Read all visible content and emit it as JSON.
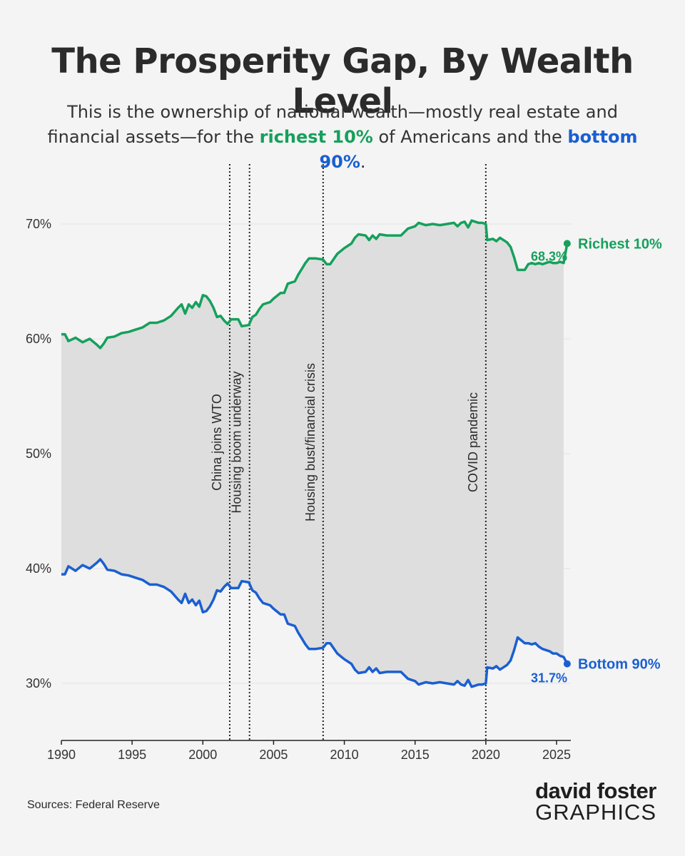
{
  "header": {
    "title": "The Prosperity Gap, By Wealth Level",
    "subtitle_part1": "This is the ownership of national wealth—mostly real estate and financial assets—for the ",
    "subtitle_green": "richest 10%",
    "subtitle_part2": " of Americans and the ",
    "subtitle_blue": "bottom 90%",
    "subtitle_part3": "."
  },
  "footer": {
    "source": "Sources: Federal Reserve",
    "brand_top": "david foster",
    "brand_bottom": "GRAPHICS"
  },
  "colors": {
    "richest": "#16a05c",
    "bottom": "#1a5fd1",
    "fill": "#dedede",
    "text": "#2a2a2a"
  },
  "chart_data": {
    "type": "line",
    "x_ticks": [
      1990,
      1995,
      2000,
      2005,
      2010,
      2015,
      2020,
      2025
    ],
    "y_ticks": [
      30,
      40,
      50,
      60,
      70
    ],
    "y_tick_labels": [
      "30%",
      "40%",
      "50%",
      "60%",
      "70%"
    ],
    "xlim": [
      1990,
      2026
    ],
    "ylim": [
      25,
      74
    ],
    "grid": "horizontal",
    "annotations": [
      {
        "x": 2001.9,
        "label": "China joins WTO"
      },
      {
        "x": 2003.3,
        "label": "Housing boom underway"
      },
      {
        "x": 2008.5,
        "label": "Housing bust/financial crisis"
      },
      {
        "x": 2020.0,
        "label": "COVID pandemic"
      }
    ],
    "series": [
      {
        "name": "Richest 10%",
        "end_label": "68.3%",
        "color": "#16a05c",
        "points": [
          [
            1990.0,
            60.4
          ],
          [
            1990.25,
            60.4
          ],
          [
            1990.5,
            59.8
          ],
          [
            1991.0,
            60.1
          ],
          [
            1991.5,
            59.7
          ],
          [
            1992.0,
            60.0
          ],
          [
            1992.5,
            59.5
          ],
          [
            1992.75,
            59.2
          ],
          [
            1993.0,
            59.6
          ],
          [
            1993.25,
            60.1
          ],
          [
            1993.75,
            60.2
          ],
          [
            1994.25,
            60.5
          ],
          [
            1994.75,
            60.6
          ],
          [
            1995.25,
            60.8
          ],
          [
            1995.75,
            61.0
          ],
          [
            1996.25,
            61.4
          ],
          [
            1996.75,
            61.4
          ],
          [
            1997.25,
            61.6
          ],
          [
            1997.75,
            62.0
          ],
          [
            1998.25,
            62.7
          ],
          [
            1998.5,
            63.0
          ],
          [
            1998.75,
            62.2
          ],
          [
            1999.0,
            63.0
          ],
          [
            1999.25,
            62.7
          ],
          [
            1999.5,
            63.2
          ],
          [
            1999.75,
            62.8
          ],
          [
            2000.0,
            63.8
          ],
          [
            2000.25,
            63.7
          ],
          [
            2000.5,
            63.3
          ],
          [
            2000.75,
            62.7
          ],
          [
            2001.0,
            61.9
          ],
          [
            2001.25,
            62.0
          ],
          [
            2001.5,
            61.6
          ],
          [
            2001.75,
            61.3
          ],
          [
            2002.0,
            61.7
          ],
          [
            2002.5,
            61.7
          ],
          [
            2002.75,
            61.1
          ],
          [
            2003.25,
            61.2
          ],
          [
            2003.5,
            61.9
          ],
          [
            2003.75,
            62.1
          ],
          [
            2004.0,
            62.6
          ],
          [
            2004.25,
            63.0
          ],
          [
            2004.75,
            63.2
          ],
          [
            2005.0,
            63.5
          ],
          [
            2005.5,
            64.0
          ],
          [
            2005.75,
            64.0
          ],
          [
            2006.0,
            64.8
          ],
          [
            2006.5,
            65.0
          ],
          [
            2006.75,
            65.6
          ],
          [
            2007.0,
            66.1
          ],
          [
            2007.25,
            66.6
          ],
          [
            2007.5,
            67.0
          ],
          [
            2008.0,
            67.0
          ],
          [
            2008.5,
            66.9
          ],
          [
            2008.75,
            66.5
          ],
          [
            2009.0,
            66.5
          ],
          [
            2009.5,
            67.4
          ],
          [
            2010.0,
            67.9
          ],
          [
            2010.5,
            68.3
          ],
          [
            2010.75,
            68.8
          ],
          [
            2011.0,
            69.1
          ],
          [
            2011.5,
            69.0
          ],
          [
            2011.75,
            68.6
          ],
          [
            2012.0,
            69.0
          ],
          [
            2012.25,
            68.7
          ],
          [
            2012.5,
            69.1
          ],
          [
            2013.0,
            69.0
          ],
          [
            2013.5,
            69.0
          ],
          [
            2014.0,
            69.0
          ],
          [
            2014.5,
            69.6
          ],
          [
            2015.0,
            69.8
          ],
          [
            2015.25,
            70.1
          ],
          [
            2015.75,
            69.9
          ],
          [
            2016.25,
            70.0
          ],
          [
            2016.75,
            69.9
          ],
          [
            2017.25,
            70.0
          ],
          [
            2017.75,
            70.1
          ],
          [
            2018.0,
            69.8
          ],
          [
            2018.25,
            70.1
          ],
          [
            2018.5,
            70.2
          ],
          [
            2018.75,
            69.7
          ],
          [
            2019.0,
            70.3
          ],
          [
            2019.5,
            70.1
          ],
          [
            2019.75,
            70.1
          ],
          [
            2020.0,
            70.0
          ],
          [
            2020.1,
            68.6
          ],
          [
            2020.5,
            68.7
          ],
          [
            2020.75,
            68.5
          ],
          [
            2021.0,
            68.8
          ],
          [
            2021.5,
            68.4
          ],
          [
            2021.75,
            68.0
          ],
          [
            2022.0,
            67.1
          ],
          [
            2022.25,
            66.0
          ],
          [
            2022.75,
            66.0
          ],
          [
            2023.0,
            66.5
          ],
          [
            2023.25,
            66.6
          ],
          [
            2023.5,
            66.5
          ],
          [
            2023.75,
            66.6
          ],
          [
            2024.0,
            66.5
          ],
          [
            2024.25,
            66.6
          ],
          [
            2024.5,
            66.7
          ],
          [
            2024.75,
            66.6
          ],
          [
            2025.0,
            66.6
          ],
          [
            2025.25,
            66.7
          ],
          [
            2025.5,
            66.6
          ],
          [
            2025.75,
            68.3
          ]
        ]
      },
      {
        "name": "Bottom 90%",
        "end_label": "31.7%",
        "color": "#1a5fd1",
        "points": [
          [
            1990.0,
            39.5
          ],
          [
            1990.25,
            39.5
          ],
          [
            1990.5,
            40.2
          ],
          [
            1991.0,
            39.8
          ],
          [
            1991.5,
            40.3
          ],
          [
            1992.0,
            40.0
          ],
          [
            1992.5,
            40.5
          ],
          [
            1992.75,
            40.8
          ],
          [
            1993.0,
            40.4
          ],
          [
            1993.25,
            39.9
          ],
          [
            1993.75,
            39.8
          ],
          [
            1994.25,
            39.5
          ],
          [
            1994.75,
            39.4
          ],
          [
            1995.25,
            39.2
          ],
          [
            1995.75,
            39.0
          ],
          [
            1996.25,
            38.6
          ],
          [
            1996.75,
            38.6
          ],
          [
            1997.25,
            38.4
          ],
          [
            1997.75,
            38.0
          ],
          [
            1998.25,
            37.3
          ],
          [
            1998.5,
            37.0
          ],
          [
            1998.75,
            37.8
          ],
          [
            1999.0,
            37.0
          ],
          [
            1999.25,
            37.3
          ],
          [
            1999.5,
            36.8
          ],
          [
            1999.75,
            37.2
          ],
          [
            2000.0,
            36.2
          ],
          [
            2000.25,
            36.3
          ],
          [
            2000.5,
            36.7
          ],
          [
            2000.75,
            37.3
          ],
          [
            2001.0,
            38.1
          ],
          [
            2001.25,
            38.0
          ],
          [
            2001.5,
            38.4
          ],
          [
            2001.75,
            38.7
          ],
          [
            2002.0,
            38.3
          ],
          [
            2002.5,
            38.3
          ],
          [
            2002.75,
            38.9
          ],
          [
            2003.25,
            38.8
          ],
          [
            2003.5,
            38.1
          ],
          [
            2003.75,
            37.9
          ],
          [
            2004.0,
            37.4
          ],
          [
            2004.25,
            37.0
          ],
          [
            2004.75,
            36.8
          ],
          [
            2005.0,
            36.5
          ],
          [
            2005.5,
            36.0
          ],
          [
            2005.75,
            36.0
          ],
          [
            2006.0,
            35.2
          ],
          [
            2006.5,
            35.0
          ],
          [
            2006.75,
            34.4
          ],
          [
            2007.0,
            33.9
          ],
          [
            2007.25,
            33.4
          ],
          [
            2007.5,
            33.0
          ],
          [
            2008.0,
            33.0
          ],
          [
            2008.5,
            33.1
          ],
          [
            2008.75,
            33.5
          ],
          [
            2009.0,
            33.5
          ],
          [
            2009.5,
            32.6
          ],
          [
            2010.0,
            32.1
          ],
          [
            2010.5,
            31.7
          ],
          [
            2010.75,
            31.2
          ],
          [
            2011.0,
            30.9
          ],
          [
            2011.5,
            31.0
          ],
          [
            2011.75,
            31.4
          ],
          [
            2012.0,
            31.0
          ],
          [
            2012.25,
            31.3
          ],
          [
            2012.5,
            30.9
          ],
          [
            2013.0,
            31.0
          ],
          [
            2013.5,
            31.0
          ],
          [
            2014.0,
            31.0
          ],
          [
            2014.5,
            30.4
          ],
          [
            2015.0,
            30.2
          ],
          [
            2015.25,
            29.9
          ],
          [
            2015.75,
            30.1
          ],
          [
            2016.25,
            30.0
          ],
          [
            2016.75,
            30.1
          ],
          [
            2017.25,
            30.0
          ],
          [
            2017.75,
            29.9
          ],
          [
            2018.0,
            30.2
          ],
          [
            2018.25,
            29.9
          ],
          [
            2018.5,
            29.8
          ],
          [
            2018.75,
            30.3
          ],
          [
            2019.0,
            29.7
          ],
          [
            2019.5,
            29.9
          ],
          [
            2019.75,
            29.9
          ],
          [
            2020.0,
            30.0
          ],
          [
            2020.1,
            31.4
          ],
          [
            2020.5,
            31.3
          ],
          [
            2020.75,
            31.5
          ],
          [
            2021.0,
            31.2
          ],
          [
            2021.5,
            31.6
          ],
          [
            2021.75,
            32.0
          ],
          [
            2022.0,
            32.9
          ],
          [
            2022.25,
            34.0
          ],
          [
            2022.75,
            33.5
          ],
          [
            2023.0,
            33.5
          ],
          [
            2023.25,
            33.4
          ],
          [
            2023.5,
            33.5
          ],
          [
            2023.75,
            33.2
          ],
          [
            2024.0,
            33.0
          ],
          [
            2024.25,
            32.9
          ],
          [
            2024.5,
            32.8
          ],
          [
            2024.75,
            32.6
          ],
          [
            2025.0,
            32.6
          ],
          [
            2025.25,
            32.4
          ],
          [
            2025.5,
            32.3
          ],
          [
            2025.75,
            31.7
          ]
        ]
      }
    ]
  }
}
